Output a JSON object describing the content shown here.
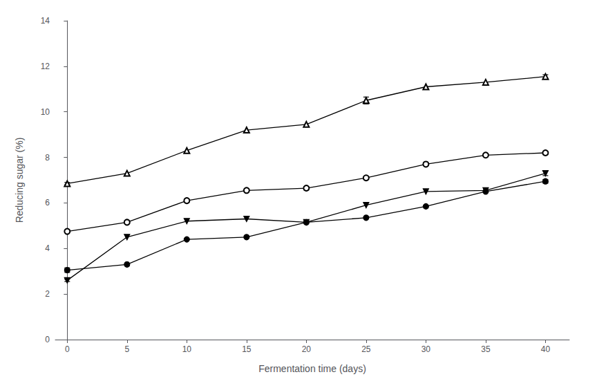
{
  "chart_data": {
    "type": "line",
    "xlabel": "Fermentation time (days)",
    "ylabel": "Reducing sugar (%)",
    "x": [
      0,
      5,
      10,
      15,
      20,
      25,
      30,
      35,
      40
    ],
    "series": [
      {
        "values": [
          6.85,
          7.3,
          8.3,
          9.2,
          9.45,
          10.5,
          11.1,
          11.3,
          11.55
        ],
        "yerr": [
          0.05,
          0.0,
          0.0,
          0.0,
          0.0,
          0.15,
          0.0,
          0.0,
          0.08
        ],
        "marker": "triangle-open"
      },
      {
        "values": [
          4.75,
          5.15,
          6.1,
          6.55,
          6.65,
          7.1,
          7.7,
          8.1,
          8.2
        ],
        "yerr": [
          0.0,
          0.0,
          0.0,
          0.0,
          0.0,
          0.0,
          0.0,
          0.0,
          0.0
        ],
        "marker": "circle-open"
      },
      {
        "values": [
          2.6,
          4.5,
          5.2,
          5.3,
          5.15,
          5.9,
          6.5,
          6.55,
          7.3
        ],
        "yerr": [
          0.05,
          0.0,
          0.0,
          0.0,
          0.0,
          0.0,
          0.0,
          0.0,
          0.1
        ],
        "marker": "triangle-down"
      },
      {
        "values": [
          3.05,
          3.3,
          4.4,
          4.5,
          5.15,
          5.35,
          5.85,
          6.5,
          6.95
        ],
        "yerr": [
          0.1,
          0.0,
          0.0,
          0.0,
          0.0,
          0.0,
          0.0,
          0.0,
          0.08
        ],
        "marker": "circle"
      }
    ],
    "color": "#000000",
    "xlim": [
      -1,
      42
    ],
    "ylim": [
      0,
      14
    ],
    "xticks": [
      0,
      5,
      10,
      15,
      20,
      25,
      30,
      35,
      40
    ],
    "yticks": [
      0,
      2,
      4,
      6,
      8,
      10,
      12,
      14
    ],
    "grid": false
  }
}
